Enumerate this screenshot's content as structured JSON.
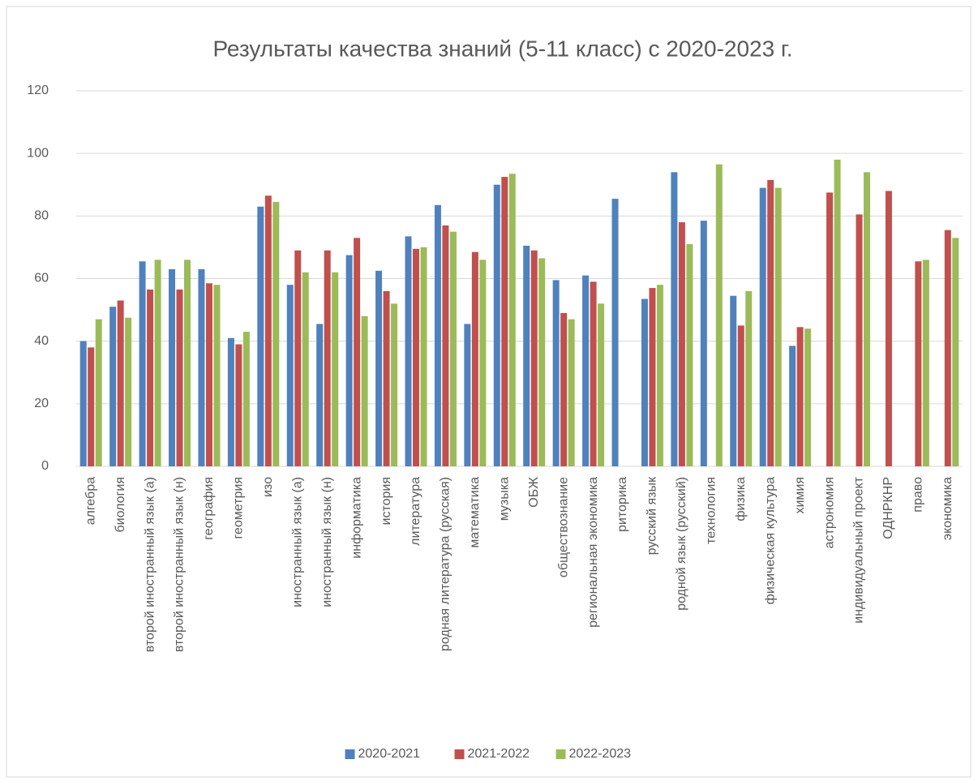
{
  "chart_data": {
    "type": "bar",
    "title": "Результаты качества знаний (5-11 класс) с 2020-2023 г.",
    "categories": [
      "алгебра",
      "биология",
      "второй иностранный язык (а)",
      "второй иностранный язык (н)",
      "география",
      "геометрия",
      "изо",
      "иностранный язык (а)",
      "иностранный язык (н)",
      "информатика",
      "история",
      "литература",
      "родная литература (русская)",
      "математика",
      "музыка",
      "ОБЖ",
      "обществознание",
      "региональная экономика",
      "риторика",
      "русский язык",
      "родной язык (русский)",
      "технология",
      "физика",
      "физическая культура",
      "химия",
      "астрономия",
      "индивидуальный проект",
      "ОДНРКНР",
      "право",
      "экономика"
    ],
    "series": [
      {
        "name": "2020-2021",
        "color": "#4f81bd",
        "values": [
          40,
          51,
          65.5,
          63,
          63,
          41,
          83,
          58,
          45.5,
          67.5,
          62.5,
          73.5,
          83.5,
          45.5,
          90,
          70.5,
          59.5,
          61,
          85.5,
          53.5,
          94,
          78.5,
          54.5,
          89,
          38.5,
          null,
          null,
          null,
          null,
          null
        ]
      },
      {
        "name": "2021-2022",
        "color": "#c0504d",
        "values": [
          38,
          53,
          56.5,
          56.5,
          58.5,
          39,
          86.5,
          69,
          69,
          73,
          56,
          69.5,
          77,
          68.5,
          92.5,
          69,
          49,
          59,
          null,
          57,
          78,
          null,
          45,
          91.5,
          44.5,
          87.5,
          80.5,
          88,
          65.5,
          75.5
        ]
      },
      {
        "name": "2022-2023",
        "color": "#9bbb59",
        "values": [
          47,
          47.5,
          66,
          66,
          58,
          43,
          84.5,
          62,
          62,
          48,
          52,
          70,
          75,
          66,
          93.5,
          66.5,
          47,
          52,
          null,
          58,
          71,
          96.5,
          56,
          89,
          44,
          98,
          94,
          null,
          66,
          73
        ]
      }
    ],
    "ylim": [
      0,
      120
    ],
    "yticks": [
      0,
      20,
      40,
      60,
      80,
      100,
      120
    ],
    "grid": true,
    "legend": "bottom"
  }
}
